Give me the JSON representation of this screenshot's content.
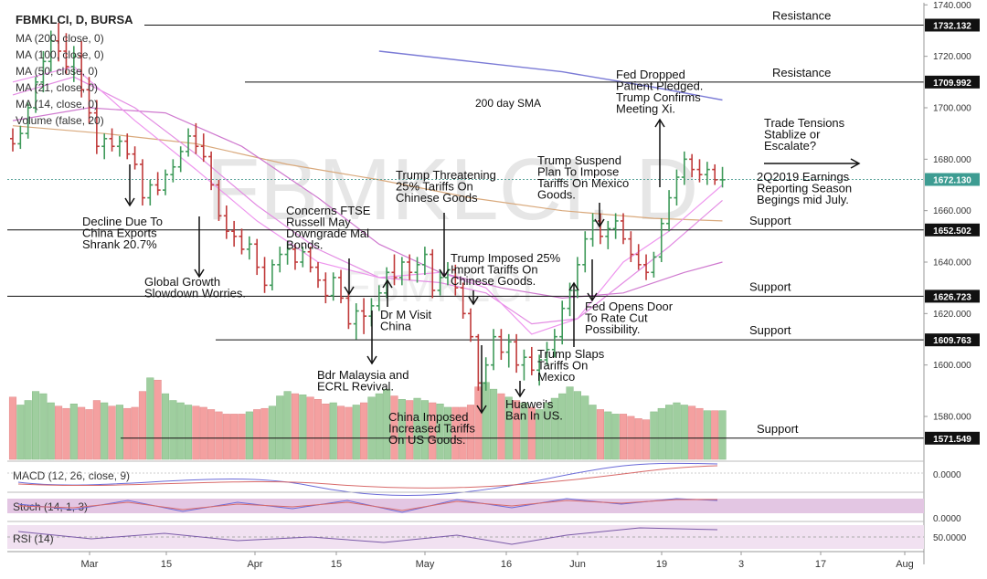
{
  "header": {
    "symbol": "FBMKLCI, D, BURSA"
  },
  "indicators_legend": [
    "MA (200, close, 0)",
    "MA (100, close, 0)",
    "MA (50, close, 0)",
    "MA (21, close, 0)",
    "MA (14, close, 0)",
    "Volume (false, 20)"
  ],
  "watermark": {
    "main": "FBMKLCI, D",
    "sub": "FBMKLCI"
  },
  "sub_panels": {
    "macd": {
      "label": "MACD (12, 26, close, 9)",
      "value": "0.0000"
    },
    "stoch": {
      "label": "Stoch (14, 1, 3)",
      "value": "0.0000"
    },
    "rsi": {
      "label": "RSI (14)",
      "value": "50.0000"
    }
  },
  "chart_data": {
    "type": "candlestick",
    "title": "FBMKLCI, D, BURSA",
    "y_axis": {
      "ylim": [
        1568,
        1740
      ],
      "ticks": [
        1580,
        1600,
        1620,
        1640,
        1660,
        1680,
        1700,
        1720,
        1740
      ],
      "tick_labels": [
        "1580.000",
        "1600.000",
        "1620.000",
        "1640.000",
        "1660.000",
        "1680.000",
        "1700.000",
        "1720.000",
        "1740.000"
      ]
    },
    "x_axis": {
      "tick_labels": [
        "Mar",
        "15",
        "Apr",
        "15",
        "May",
        "16",
        "Jun",
        "19",
        "3",
        "17",
        "Aug"
      ]
    },
    "grid": false,
    "candles": [
      {
        "o": 1688,
        "h": 1692,
        "l": 1683,
        "c": 1686
      },
      {
        "o": 1686,
        "h": 1693,
        "l": 1684,
        "c": 1690
      },
      {
        "o": 1690,
        "h": 1702,
        "l": 1688,
        "c": 1700
      },
      {
        "o": 1700,
        "h": 1712,
        "l": 1698,
        "c": 1710
      },
      {
        "o": 1710,
        "h": 1722,
        "l": 1706,
        "c": 1718
      },
      {
        "o": 1718,
        "h": 1730,
        "l": 1714,
        "c": 1726
      },
      {
        "o": 1726,
        "h": 1733,
        "l": 1718,
        "c": 1722
      },
      {
        "o": 1722,
        "h": 1729,
        "l": 1713,
        "c": 1716
      },
      {
        "o": 1716,
        "h": 1724,
        "l": 1710,
        "c": 1720
      },
      {
        "o": 1720,
        "h": 1726,
        "l": 1704,
        "c": 1707
      },
      {
        "o": 1707,
        "h": 1712,
        "l": 1694,
        "c": 1698
      },
      {
        "o": 1698,
        "h": 1703,
        "l": 1682,
        "c": 1685
      },
      {
        "o": 1685,
        "h": 1690,
        "l": 1680,
        "c": 1688
      },
      {
        "o": 1688,
        "h": 1692,
        "l": 1683,
        "c": 1685
      },
      {
        "o": 1685,
        "h": 1689,
        "l": 1681,
        "c": 1687
      },
      {
        "o": 1687,
        "h": 1690,
        "l": 1680,
        "c": 1682
      },
      {
        "o": 1682,
        "h": 1685,
        "l": 1676,
        "c": 1678
      },
      {
        "o": 1678,
        "h": 1680,
        "l": 1662,
        "c": 1665
      },
      {
        "o": 1665,
        "h": 1672,
        "l": 1662,
        "c": 1670
      },
      {
        "o": 1670,
        "h": 1675,
        "l": 1666,
        "c": 1668
      },
      {
        "o": 1668,
        "h": 1676,
        "l": 1666,
        "c": 1674
      },
      {
        "o": 1674,
        "h": 1680,
        "l": 1671,
        "c": 1677
      },
      {
        "o": 1677,
        "h": 1685,
        "l": 1675,
        "c": 1683
      },
      {
        "o": 1683,
        "h": 1692,
        "l": 1681,
        "c": 1689
      },
      {
        "o": 1689,
        "h": 1694,
        "l": 1682,
        "c": 1685
      },
      {
        "o": 1685,
        "h": 1690,
        "l": 1679,
        "c": 1681
      },
      {
        "o": 1681,
        "h": 1683,
        "l": 1668,
        "c": 1670
      },
      {
        "o": 1670,
        "h": 1672,
        "l": 1656,
        "c": 1658
      },
      {
        "o": 1658,
        "h": 1662,
        "l": 1649,
        "c": 1652
      },
      {
        "o": 1652,
        "h": 1656,
        "l": 1646,
        "c": 1650
      },
      {
        "o": 1650,
        "h": 1653,
        "l": 1643,
        "c": 1645
      },
      {
        "o": 1645,
        "h": 1650,
        "l": 1641,
        "c": 1647
      },
      {
        "o": 1647,
        "h": 1649,
        "l": 1635,
        "c": 1638
      },
      {
        "o": 1638,
        "h": 1642,
        "l": 1628,
        "c": 1631
      },
      {
        "o": 1631,
        "h": 1641,
        "l": 1629,
        "c": 1639
      },
      {
        "o": 1639,
        "h": 1646,
        "l": 1636,
        "c": 1643
      },
      {
        "o": 1643,
        "h": 1648,
        "l": 1639,
        "c": 1645
      },
      {
        "o": 1645,
        "h": 1647,
        "l": 1637,
        "c": 1640
      },
      {
        "o": 1640,
        "h": 1646,
        "l": 1638,
        "c": 1644
      },
      {
        "o": 1644,
        "h": 1646,
        "l": 1636,
        "c": 1638
      },
      {
        "o": 1638,
        "h": 1640,
        "l": 1630,
        "c": 1633
      },
      {
        "o": 1633,
        "h": 1636,
        "l": 1624,
        "c": 1627
      },
      {
        "o": 1627,
        "h": 1636,
        "l": 1625,
        "c": 1634
      },
      {
        "o": 1634,
        "h": 1637,
        "l": 1624,
        "c": 1626
      },
      {
        "o": 1626,
        "h": 1628,
        "l": 1614,
        "c": 1616
      },
      {
        "o": 1616,
        "h": 1624,
        "l": 1610,
        "c": 1621
      },
      {
        "o": 1621,
        "h": 1626,
        "l": 1612,
        "c": 1619
      },
      {
        "o": 1619,
        "h": 1626,
        "l": 1615,
        "c": 1623
      },
      {
        "o": 1623,
        "h": 1631,
        "l": 1621,
        "c": 1628
      },
      {
        "o": 1628,
        "h": 1638,
        "l": 1626,
        "c": 1636
      },
      {
        "o": 1636,
        "h": 1643,
        "l": 1631,
        "c": 1634
      },
      {
        "o": 1634,
        "h": 1642,
        "l": 1631,
        "c": 1640
      },
      {
        "o": 1640,
        "h": 1643,
        "l": 1633,
        "c": 1636
      },
      {
        "o": 1636,
        "h": 1642,
        "l": 1632,
        "c": 1639
      },
      {
        "o": 1639,
        "h": 1646,
        "l": 1635,
        "c": 1643
      },
      {
        "o": 1643,
        "h": 1645,
        "l": 1626,
        "c": 1629
      },
      {
        "o": 1629,
        "h": 1637,
        "l": 1627,
        "c": 1634
      },
      {
        "o": 1634,
        "h": 1640,
        "l": 1631,
        "c": 1637
      },
      {
        "o": 1637,
        "h": 1639,
        "l": 1627,
        "c": 1630
      },
      {
        "o": 1630,
        "h": 1632,
        "l": 1618,
        "c": 1620
      },
      {
        "o": 1620,
        "h": 1622,
        "l": 1609,
        "c": 1611
      },
      {
        "o": 1611,
        "h": 1612,
        "l": 1590,
        "c": 1593
      },
      {
        "o": 1593,
        "h": 1603,
        "l": 1590,
        "c": 1600
      },
      {
        "o": 1600,
        "h": 1614,
        "l": 1598,
        "c": 1611
      },
      {
        "o": 1611,
        "h": 1614,
        "l": 1602,
        "c": 1605
      },
      {
        "o": 1605,
        "h": 1612,
        "l": 1599,
        "c": 1609
      },
      {
        "o": 1609,
        "h": 1612,
        "l": 1597,
        "c": 1600
      },
      {
        "o": 1600,
        "h": 1606,
        "l": 1594,
        "c": 1603
      },
      {
        "o": 1603,
        "h": 1607,
        "l": 1596,
        "c": 1598
      },
      {
        "o": 1598,
        "h": 1604,
        "l": 1592,
        "c": 1602
      },
      {
        "o": 1602,
        "h": 1609,
        "l": 1600,
        "c": 1606
      },
      {
        "o": 1606,
        "h": 1614,
        "l": 1603,
        "c": 1611
      },
      {
        "o": 1611,
        "h": 1625,
        "l": 1608,
        "c": 1622
      },
      {
        "o": 1622,
        "h": 1632,
        "l": 1619,
        "c": 1629
      },
      {
        "o": 1629,
        "h": 1642,
        "l": 1626,
        "c": 1639
      },
      {
        "o": 1639,
        "h": 1652,
        "l": 1636,
        "c": 1649
      },
      {
        "o": 1649,
        "h": 1659,
        "l": 1646,
        "c": 1656
      },
      {
        "o": 1656,
        "h": 1659,
        "l": 1647,
        "c": 1650
      },
      {
        "o": 1650,
        "h": 1656,
        "l": 1645,
        "c": 1653
      },
      {
        "o": 1653,
        "h": 1659,
        "l": 1649,
        "c": 1656
      },
      {
        "o": 1656,
        "h": 1659,
        "l": 1647,
        "c": 1649
      },
      {
        "o": 1649,
        "h": 1652,
        "l": 1640,
        "c": 1643
      },
      {
        "o": 1643,
        "h": 1647,
        "l": 1637,
        "c": 1639
      },
      {
        "o": 1639,
        "h": 1643,
        "l": 1633,
        "c": 1636
      },
      {
        "o": 1636,
        "h": 1644,
        "l": 1634,
        "c": 1642
      },
      {
        "o": 1642,
        "h": 1657,
        "l": 1640,
        "c": 1655
      },
      {
        "o": 1655,
        "h": 1668,
        "l": 1652,
        "c": 1665
      },
      {
        "o": 1665,
        "h": 1676,
        "l": 1662,
        "c": 1673
      },
      {
        "o": 1673,
        "h": 1683,
        "l": 1670,
        "c": 1680
      },
      {
        "o": 1680,
        "h": 1682,
        "l": 1673,
        "c": 1676
      },
      {
        "o": 1676,
        "h": 1680,
        "l": 1671,
        "c": 1674
      },
      {
        "o": 1674,
        "h": 1679,
        "l": 1670,
        "c": 1676
      },
      {
        "o": 1676,
        "h": 1678,
        "l": 1670,
        "c": 1672
      },
      {
        "o": 1672,
        "h": 1677,
        "l": 1669,
        "c": 1672
      }
    ],
    "volume": {
      "max": 100,
      "values": [
        55,
        48,
        52,
        60,
        58,
        50,
        47,
        45,
        49,
        46,
        44,
        52,
        50,
        47,
        48,
        45,
        46,
        60,
        72,
        70,
        58,
        52,
        50,
        48,
        47,
        46,
        44,
        42,
        40,
        40,
        40,
        42,
        44,
        45,
        47,
        56,
        60,
        58,
        57,
        55,
        53,
        49,
        50,
        47,
        46,
        48,
        50,
        55,
        58,
        62,
        56,
        53,
        52,
        54,
        52,
        50,
        49,
        46,
        46,
        46,
        48,
        64,
        68,
        62,
        58,
        55,
        52,
        50,
        46,
        44,
        50,
        54,
        58,
        64,
        60,
        56,
        48,
        44,
        42,
        40,
        40,
        38,
        36,
        35,
        42,
        45,
        48,
        50,
        48,
        47,
        45,
        43,
        43,
        43
      ]
    },
    "series": [
      {
        "name": "MA (200, close, 0)",
        "color": "#7b7bd6",
        "values": [
          [
            48,
            1722
          ],
          [
            60,
            1718
          ],
          [
            72,
            1714
          ],
          [
            84,
            1708
          ],
          [
            93,
            1703
          ]
        ]
      },
      {
        "name": "MA (100, close, 0)",
        "color": "#d9a97c",
        "values": [
          [
            0,
            1693
          ],
          [
            12,
            1690
          ],
          [
            24,
            1686
          ],
          [
            36,
            1678
          ],
          [
            48,
            1672
          ],
          [
            60,
            1665
          ],
          [
            72,
            1660
          ],
          [
            84,
            1657
          ],
          [
            93,
            1656
          ]
        ]
      },
      {
        "name": "MA (50, close, 0)",
        "color": "#cf79cf",
        "values": [
          [
            0,
            1695
          ],
          [
            10,
            1700
          ],
          [
            20,
            1698
          ],
          [
            30,
            1685
          ],
          [
            40,
            1665
          ],
          [
            48,
            1647
          ],
          [
            56,
            1636
          ],
          [
            64,
            1630
          ],
          [
            72,
            1626
          ],
          [
            80,
            1628
          ],
          [
            88,
            1636
          ],
          [
            93,
            1640
          ]
        ]
      },
      {
        "name": "MA (21, close, 0)",
        "color": "#e38de3",
        "values": [
          [
            0,
            1705
          ],
          [
            8,
            1712
          ],
          [
            16,
            1700
          ],
          [
            24,
            1682
          ],
          [
            32,
            1662
          ],
          [
            40,
            1645
          ],
          [
            48,
            1634
          ],
          [
            56,
            1632
          ],
          [
            62,
            1628
          ],
          [
            68,
            1616
          ],
          [
            74,
            1618
          ],
          [
            80,
            1632
          ],
          [
            86,
            1646
          ],
          [
            93,
            1664
          ]
        ]
      },
      {
        "name": "MA (14, close, 0)",
        "color": "#ee95ee",
        "values": [
          [
            0,
            1710
          ],
          [
            8,
            1716
          ],
          [
            16,
            1695
          ],
          [
            24,
            1676
          ],
          [
            32,
            1656
          ],
          [
            40,
            1640
          ],
          [
            48,
            1634
          ],
          [
            56,
            1636
          ],
          [
            62,
            1630
          ],
          [
            68,
            1612
          ],
          [
            74,
            1618
          ],
          [
            80,
            1640
          ],
          [
            86,
            1652
          ],
          [
            93,
            1670
          ]
        ]
      }
    ],
    "horizontal_levels": [
      {
        "label": "Resistance",
        "price_label": "1732.132",
        "value": 1732.132
      },
      {
        "label": "Resistance",
        "price_label": "1709.992",
        "value": 1709.992
      },
      {
        "label": "Support",
        "price_label": "1652.502",
        "value": 1652.502
      },
      {
        "label": "Support",
        "price_label": "1626.723",
        "value": 1626.723
      },
      {
        "label": "Support",
        "price_label": "1609.763",
        "value": 1609.763
      },
      {
        "label": "Support",
        "price_label": "1571.549",
        "value": 1571.549
      }
    ],
    "last_price": {
      "value": 1672.13,
      "label": "1672.130"
    },
    "annotations": [
      {
        "lines": [
          "Decline Due To",
          "China Exports",
          "Shrank 20.7%"
        ],
        "bar": 13,
        "price": 1665,
        "dir": "down"
      },
      {
        "lines": [
          "Global Growth",
          "Slowdown Worries."
        ],
        "bar": 20,
        "price": 1635,
        "dir": "down"
      },
      {
        "lines": [
          "Concerns FTSE",
          "Russell May",
          "Downgrade Mal",
          "Bonds."
        ],
        "bar": 36,
        "price": 1625,
        "dir": "down"
      },
      {
        "lines": [
          "Dr M Visit",
          "China"
        ],
        "bar": 40,
        "price": 1620,
        "dir": "up"
      },
      {
        "lines": [
          "Bdr Malaysia and",
          "ECRL Revival."
        ],
        "bar": 38,
        "price": 1600,
        "dir": "down"
      },
      {
        "lines": [
          "Trump Threatening",
          "25% Tariffs On",
          "Chinese Goods"
        ],
        "bar": 45,
        "price": 1633,
        "dir": "down"
      },
      {
        "lines": [
          "Trump Imposed 25%",
          "Import Tariffs On",
          "Chinese Goods."
        ],
        "bar": 49,
        "price": 1622,
        "dir": "down"
      },
      {
        "lines": [
          "China Imposed",
          "Increased Tariffs",
          "On US Goods."
        ],
        "bar": 50,
        "price": 1582,
        "dir": "down"
      },
      {
        "lines": [
          "Huawei's",
          "Ban In US."
        ],
        "bar": 54,
        "price": 1590,
        "dir": "down"
      },
      {
        "lines": [
          "Trump Slaps",
          "Tariffs On",
          "Mexico"
        ],
        "bar": 59,
        "price": 1607,
        "dir": "up"
      },
      {
        "lines": [
          "Trump Suspend",
          "Plan To Impose",
          "Tariffs On Mexico",
          "Goods."
        ],
        "bar": 62,
        "price": 1652,
        "dir": "down"
      },
      {
        "lines": [
          "Fed Opens Door",
          "To Rate Cut",
          "Possibility."
        ],
        "bar": 61,
        "price": 1626,
        "dir": "down"
      },
      {
        "lines": [
          "Fed Dropped",
          "Patient Pledged.",
          "Trump Confirms",
          "Meeting Xi."
        ],
        "bar": 69,
        "price": 1696,
        "dir": "up"
      },
      {
        "lines": [
          "Trade Tensions",
          "Stablize or",
          "Escalate?"
        ],
        "dir": "right"
      },
      {
        "lines": [
          "2Q2019 Earnings",
          "Reporting Season",
          "Begings mid July."
        ]
      },
      {
        "lines": [
          "200 day SMA"
        ]
      }
    ]
  }
}
